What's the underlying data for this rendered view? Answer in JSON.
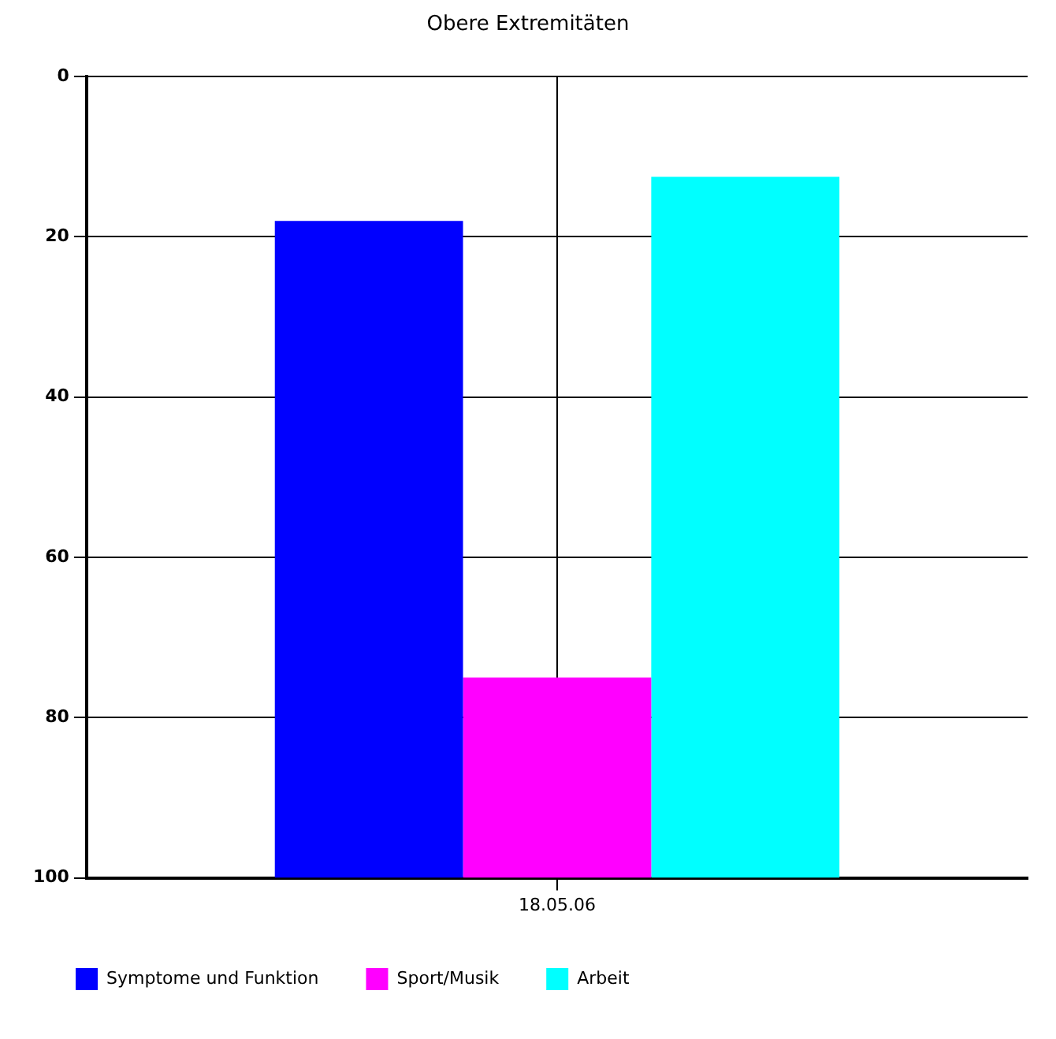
{
  "chart_data": {
    "type": "bar",
    "title": "Obere Extremitäten",
    "categories": [
      "18.05.06"
    ],
    "series": [
      {
        "name": "Symptome und Funktion",
        "color": "#0000ff",
        "values": [
          -82
        ],
        "base": [
          100
        ]
      },
      {
        "name": "Sport/Musik",
        "color": "#ff00ff",
        "values": [
          -25
        ],
        "base": [
          100
        ]
      },
      {
        "name": "Arbeit",
        "color": "#00ffff",
        "values": [
          -87.5
        ],
        "base": [
          100
        ]
      }
    ],
    "ylim": [
      100,
      0
    ],
    "yticks": [
      0,
      20,
      40,
      60,
      80,
      100
    ],
    "grid": true,
    "legend": "bottom"
  }
}
